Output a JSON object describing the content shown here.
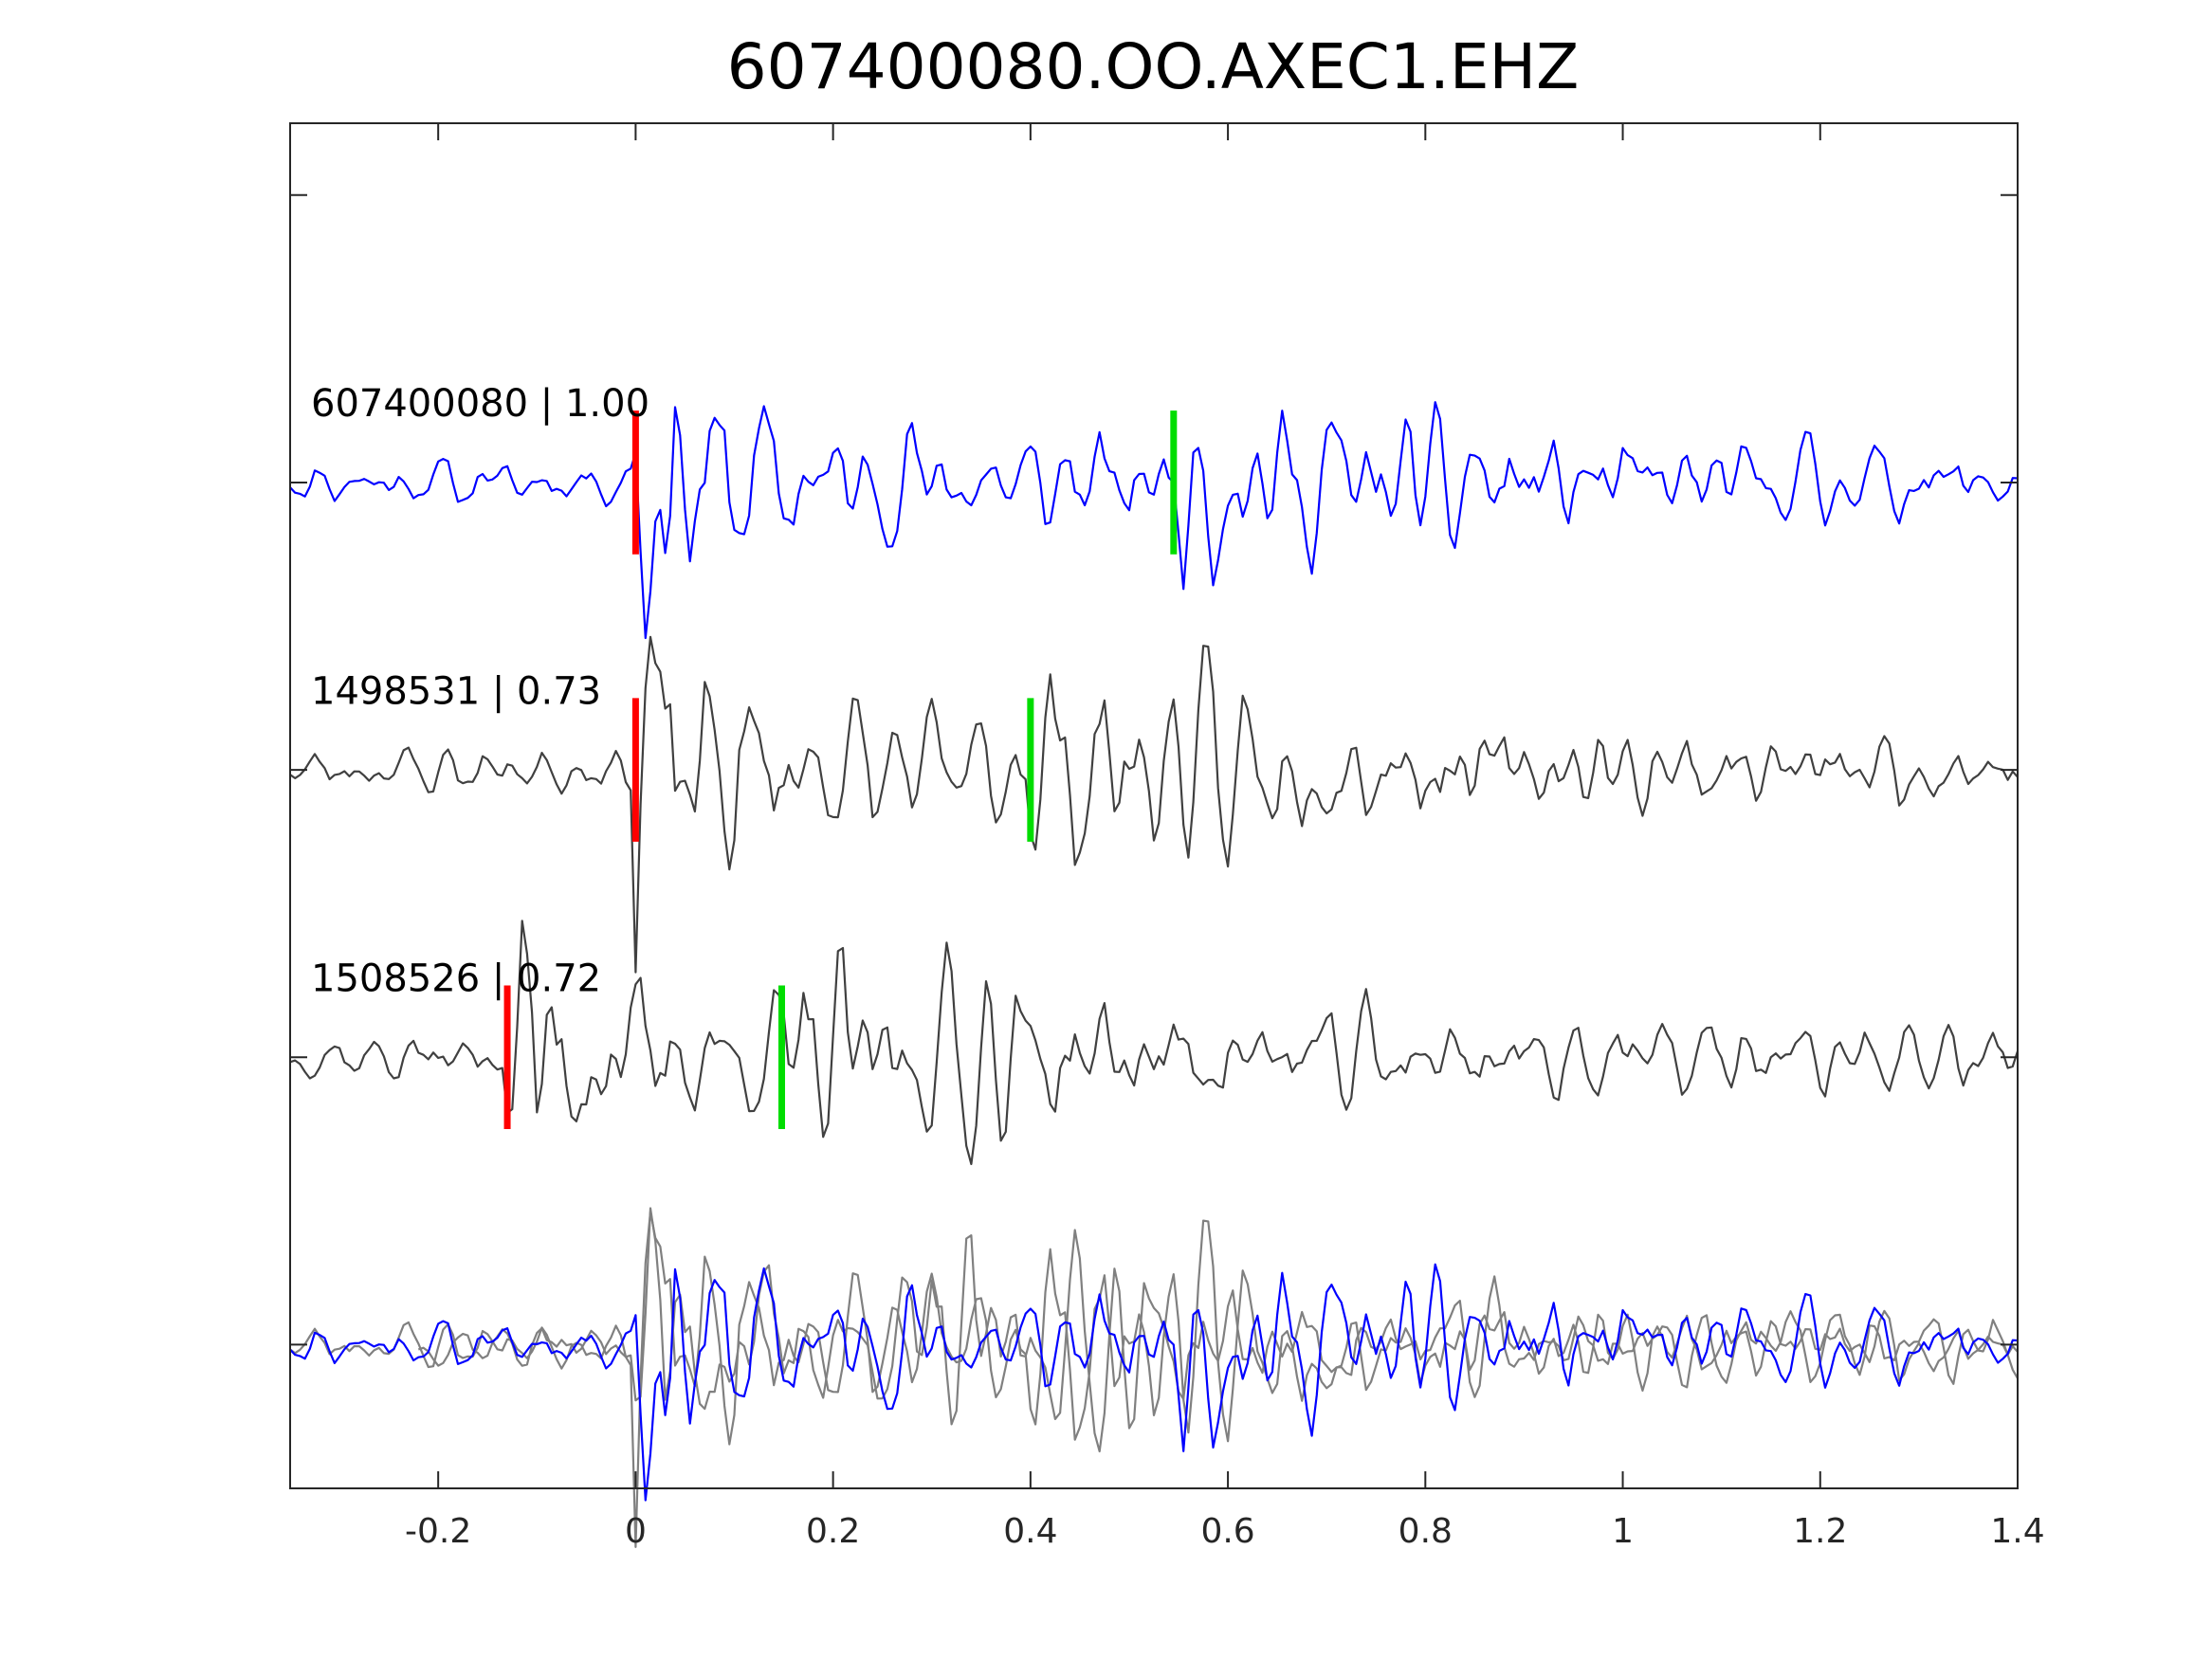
{
  "chart_data": {
    "type": "line",
    "title": "607400080.OO.AXEC1.EHZ",
    "xlabel": "",
    "ylabel": "",
    "xlim": [
      -0.35,
      1.4
    ],
    "ylim": [
      -0.5,
      4.25
    ],
    "x_ticks": [
      -0.2,
      0,
      0.2,
      0.4,
      0.6,
      0.8,
      1,
      1.2,
      1.4
    ],
    "x_tick_labels": [
      "-0.2",
      "0",
      "0.2",
      "0.4",
      "0.6",
      "0.8",
      "1",
      "1.2",
      "1.4"
    ],
    "y_ticks": [
      0,
      1,
      2,
      3,
      4
    ],
    "grid": false,
    "sample_rate_hz": 200,
    "colors": {
      "reference": "#0000ff",
      "matched": "#404040",
      "overlay_matched": "#808080",
      "p_pick": "#ff0000",
      "s_pick": "#00dd00"
    },
    "traces": [
      {
        "id": "607400080",
        "label": "607400080 | 1.00",
        "correlation": 1.0,
        "baseline": 3,
        "color": "reference",
        "time_shift": 0.0,
        "p_pick": 0.0,
        "s_pick": 0.545,
        "envelope_peak": 0.5,
        "seed": 11
      },
      {
        "id": "1498531",
        "label": "1498531 | 0.73",
        "correlation": 0.73,
        "baseline": 2,
        "color": "matched",
        "time_shift": 0.0,
        "p_pick": 0.0,
        "s_pick": 0.4,
        "envelope_peak": 0.45,
        "seed": 23
      },
      {
        "id": "1508526",
        "label": "1508526 | 0.72",
        "correlation": 0.72,
        "baseline": 1,
        "color": "matched",
        "time_shift": -0.13,
        "p_pick": -0.13,
        "s_pick": 0.148,
        "envelope_peak": 0.48,
        "seed": 37
      }
    ],
    "overlay": {
      "baseline": 0,
      "traces": [
        "607400080",
        "1498531",
        "1508526"
      ],
      "aligned_on": "p_pick"
    }
  }
}
